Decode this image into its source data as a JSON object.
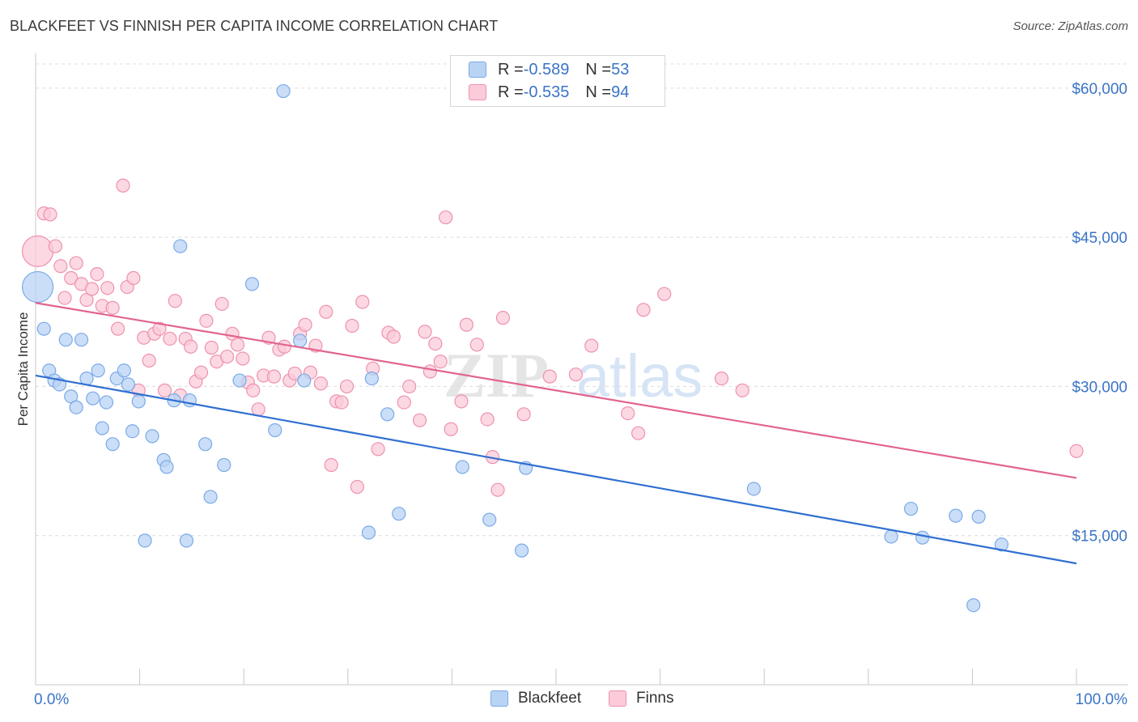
{
  "header": {
    "title": "BLACKFEET VS FINNISH PER CAPITA INCOME CORRELATION CHART",
    "source": "Source: ZipAtlas.com"
  },
  "watermark": {
    "zip": "ZIP",
    "atlas": "atlas"
  },
  "colors": {
    "blackfeet_fill": "#b9d3f5",
    "blackfeet_stroke": "#7aaae8",
    "blackfeet_line": "#2f6fd1",
    "finns_fill": "#fbcbd9",
    "finns_stroke": "#ee92ad",
    "finns_line": "#e2648e",
    "axis_label": "#3b74c7",
    "grid": "#dcdcdc"
  },
  "legend": {
    "rows": [
      {
        "r_label": "R = ",
        "r_value": "-0.589",
        "n_label": "N = ",
        "n_value": "53",
        "series": "Blackfeet"
      },
      {
        "r_label": "R = ",
        "r_value": "-0.535",
        "n_label": "N = ",
        "n_value": "94",
        "series": "Finns"
      }
    ]
  },
  "bottom_legend": {
    "items": [
      "Blackfeet",
      "Finns"
    ]
  },
  "chart_data": {
    "type": "scatter",
    "title": "BLACKFEET VS FINNISH PER CAPITA INCOME CORRELATION CHART",
    "xlabel": "",
    "ylabel": "Per Capita Income",
    "xlim": [
      0,
      100
    ],
    "ylim": [
      0,
      63000
    ],
    "x_tick_labels": [
      "0.0%",
      "100.0%"
    ],
    "y_ticks": [
      15000,
      30000,
      45000,
      60000
    ],
    "y_tick_labels": [
      "$15,000",
      "$30,000",
      "$45,000",
      "$60,000"
    ],
    "grid": true,
    "series": [
      {
        "name": "Blackfeet",
        "r": -0.589,
        "n": 53,
        "trend": {
          "x": [
            0,
            100
          ],
          "y": [
            31100,
            12200
          ]
        },
        "points": [
          {
            "x": 0.2,
            "y": 40000,
            "big": true
          },
          {
            "x": 0.8,
            "y": 35800
          },
          {
            "x": 1.3,
            "y": 31600
          },
          {
            "x": 1.8,
            "y": 30600
          },
          {
            "x": 2.3,
            "y": 30200
          },
          {
            "x": 2.9,
            "y": 34700
          },
          {
            "x": 3.4,
            "y": 29000
          },
          {
            "x": 3.9,
            "y": 27900
          },
          {
            "x": 4.4,
            "y": 34700
          },
          {
            "x": 4.9,
            "y": 30800
          },
          {
            "x": 5.5,
            "y": 28800
          },
          {
            "x": 6.0,
            "y": 31600
          },
          {
            "x": 6.4,
            "y": 25800
          },
          {
            "x": 6.8,
            "y": 28400
          },
          {
            "x": 7.4,
            "y": 24200
          },
          {
            "x": 7.8,
            "y": 30800
          },
          {
            "x": 8.5,
            "y": 31600
          },
          {
            "x": 8.9,
            "y": 30200
          },
          {
            "x": 9.3,
            "y": 25500
          },
          {
            "x": 9.9,
            "y": 28500
          },
          {
            "x": 10.5,
            "y": 14500
          },
          {
            "x": 11.2,
            "y": 25000
          },
          {
            "x": 12.3,
            "y": 22600
          },
          {
            "x": 12.6,
            "y": 21900
          },
          {
            "x": 13.3,
            "y": 28600
          },
          {
            "x": 13.9,
            "y": 44100
          },
          {
            "x": 14.5,
            "y": 14500
          },
          {
            "x": 14.8,
            "y": 28600
          },
          {
            "x": 16.3,
            "y": 24200
          },
          {
            "x": 16.8,
            "y": 18900
          },
          {
            "x": 18.1,
            "y": 22100
          },
          {
            "x": 19.6,
            "y": 30600
          },
          {
            "x": 20.8,
            "y": 40300
          },
          {
            "x": 23.0,
            "y": 25600
          },
          {
            "x": 23.8,
            "y": 59700
          },
          {
            "x": 25.4,
            "y": 34600
          },
          {
            "x": 25.8,
            "y": 30600
          },
          {
            "x": 32.0,
            "y": 15300
          },
          {
            "x": 32.3,
            "y": 30800
          },
          {
            "x": 33.8,
            "y": 27200
          },
          {
            "x": 34.9,
            "y": 17200
          },
          {
            "x": 41.0,
            "y": 21900
          },
          {
            "x": 43.6,
            "y": 16600
          },
          {
            "x": 46.7,
            "y": 13500
          },
          {
            "x": 47.1,
            "y": 21800
          },
          {
            "x": 69.0,
            "y": 19700
          },
          {
            "x": 82.2,
            "y": 14900
          },
          {
            "x": 84.1,
            "y": 17700
          },
          {
            "x": 85.2,
            "y": 14800
          },
          {
            "x": 88.4,
            "y": 17000
          },
          {
            "x": 90.1,
            "y": 8000
          },
          {
            "x": 90.6,
            "y": 16900
          },
          {
            "x": 92.8,
            "y": 14100
          }
        ]
      },
      {
        "name": "Finns",
        "r": -0.535,
        "n": 94,
        "trend": {
          "x": [
            0,
            100
          ],
          "y": [
            38400,
            20800
          ]
        },
        "points": [
          {
            "x": 0.2,
            "y": 43600,
            "big": true
          },
          {
            "x": 0.8,
            "y": 47400
          },
          {
            "x": 1.4,
            "y": 47300
          },
          {
            "x": 1.9,
            "y": 44100
          },
          {
            "x": 2.4,
            "y": 42100
          },
          {
            "x": 2.8,
            "y": 38900
          },
          {
            "x": 3.4,
            "y": 40900
          },
          {
            "x": 3.9,
            "y": 42400
          },
          {
            "x": 4.4,
            "y": 40300
          },
          {
            "x": 4.9,
            "y": 38700
          },
          {
            "x": 5.4,
            "y": 39800
          },
          {
            "x": 5.9,
            "y": 41300
          },
          {
            "x": 6.4,
            "y": 38100
          },
          {
            "x": 6.9,
            "y": 39900
          },
          {
            "x": 7.4,
            "y": 37900
          },
          {
            "x": 7.9,
            "y": 35800
          },
          {
            "x": 8.4,
            "y": 50200
          },
          {
            "x": 8.8,
            "y": 40000
          },
          {
            "x": 9.4,
            "y": 40900
          },
          {
            "x": 9.9,
            "y": 29600
          },
          {
            "x": 10.4,
            "y": 34900
          },
          {
            "x": 10.9,
            "y": 32600
          },
          {
            "x": 11.4,
            "y": 35300
          },
          {
            "x": 11.9,
            "y": 35800
          },
          {
            "x": 12.4,
            "y": 29600
          },
          {
            "x": 12.9,
            "y": 34800
          },
          {
            "x": 13.4,
            "y": 38600
          },
          {
            "x": 13.9,
            "y": 29100
          },
          {
            "x": 14.4,
            "y": 34800
          },
          {
            "x": 14.9,
            "y": 34000
          },
          {
            "x": 15.4,
            "y": 30500
          },
          {
            "x": 15.9,
            "y": 31400
          },
          {
            "x": 16.4,
            "y": 36600
          },
          {
            "x": 16.9,
            "y": 33900
          },
          {
            "x": 17.4,
            "y": 32500
          },
          {
            "x": 17.9,
            "y": 38300
          },
          {
            "x": 18.4,
            "y": 33000
          },
          {
            "x": 18.9,
            "y": 35300
          },
          {
            "x": 19.4,
            "y": 34200
          },
          {
            "x": 19.9,
            "y": 32800
          },
          {
            "x": 20.4,
            "y": 30400
          },
          {
            "x": 20.9,
            "y": 29600
          },
          {
            "x": 21.4,
            "y": 27700
          },
          {
            "x": 21.9,
            "y": 31100
          },
          {
            "x": 22.4,
            "y": 34900
          },
          {
            "x": 22.9,
            "y": 31000
          },
          {
            "x": 23.4,
            "y": 33700
          },
          {
            "x": 23.9,
            "y": 34000
          },
          {
            "x": 24.4,
            "y": 30600
          },
          {
            "x": 24.9,
            "y": 31300
          },
          {
            "x": 25.4,
            "y": 35300
          },
          {
            "x": 25.9,
            "y": 36200
          },
          {
            "x": 26.4,
            "y": 31400
          },
          {
            "x": 26.9,
            "y": 34100
          },
          {
            "x": 27.4,
            "y": 30300
          },
          {
            "x": 27.9,
            "y": 37500
          },
          {
            "x": 28.4,
            "y": 22100
          },
          {
            "x": 28.9,
            "y": 28500
          },
          {
            "x": 29.4,
            "y": 28400
          },
          {
            "x": 29.9,
            "y": 30000
          },
          {
            "x": 30.4,
            "y": 36100
          },
          {
            "x": 30.9,
            "y": 19900
          },
          {
            "x": 31.4,
            "y": 38500
          },
          {
            "x": 32.4,
            "y": 31800
          },
          {
            "x": 32.9,
            "y": 23700
          },
          {
            "x": 33.9,
            "y": 35400
          },
          {
            "x": 34.4,
            "y": 35000
          },
          {
            "x": 35.4,
            "y": 28400
          },
          {
            "x": 35.9,
            "y": 30000
          },
          {
            "x": 36.9,
            "y": 26600
          },
          {
            "x": 37.4,
            "y": 35500
          },
          {
            "x": 37.9,
            "y": 31500
          },
          {
            "x": 38.4,
            "y": 34300
          },
          {
            "x": 38.9,
            "y": 32500
          },
          {
            "x": 39.4,
            "y": 47000
          },
          {
            "x": 39.9,
            "y": 25700
          },
          {
            "x": 40.9,
            "y": 28500
          },
          {
            "x": 41.4,
            "y": 36200
          },
          {
            "x": 42.4,
            "y": 34200
          },
          {
            "x": 43.4,
            "y": 26700
          },
          {
            "x": 43.9,
            "y": 22900
          },
          {
            "x": 44.4,
            "y": 19600
          },
          {
            "x": 44.9,
            "y": 36900
          },
          {
            "x": 46.9,
            "y": 27200
          },
          {
            "x": 49.4,
            "y": 31000
          },
          {
            "x": 51.9,
            "y": 31200
          },
          {
            "x": 53.4,
            "y": 34100
          },
          {
            "x": 56.9,
            "y": 27300
          },
          {
            "x": 57.9,
            "y": 25300
          },
          {
            "x": 58.4,
            "y": 37700
          },
          {
            "x": 60.4,
            "y": 39300
          },
          {
            "x": 65.9,
            "y": 30800
          },
          {
            "x": 67.9,
            "y": 29600
          },
          {
            "x": 100.0,
            "y": 23500
          }
        ]
      }
    ]
  }
}
